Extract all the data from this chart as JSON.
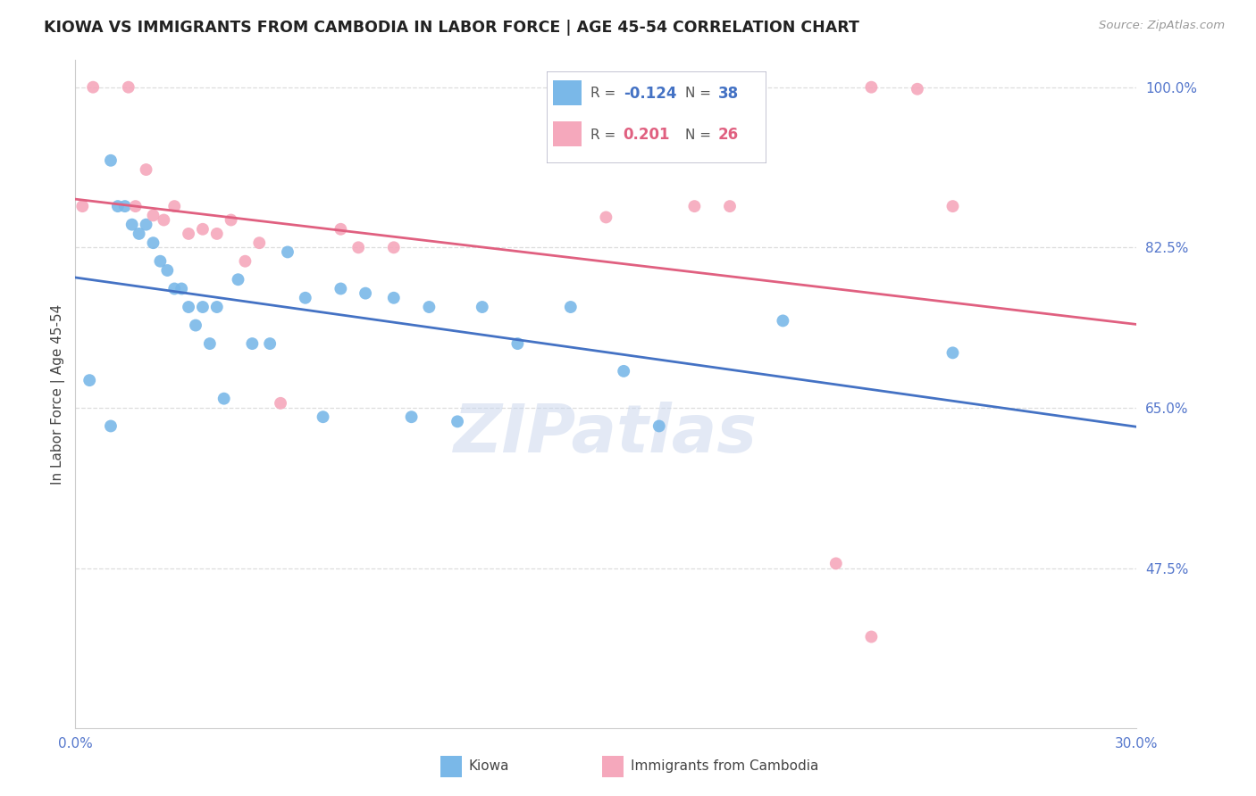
{
  "title": "KIOWA VS IMMIGRANTS FROM CAMBODIA IN LABOR FORCE | AGE 45-54 CORRELATION CHART",
  "source": "Source: ZipAtlas.com",
  "ylabel": "In Labor Force | Age 45-54",
  "xlim": [
    0.0,
    0.3
  ],
  "ylim": [
    0.3,
    1.03
  ],
  "yticks": [
    0.475,
    0.65,
    0.825,
    1.0
  ],
  "ytick_labels": [
    "47.5%",
    "65.0%",
    "82.5%",
    "100.0%"
  ],
  "xticks": [
    0.0,
    0.05,
    0.1,
    0.15,
    0.2,
    0.25,
    0.3
  ],
  "xtick_labels": [
    "0.0%",
    "",
    "",
    "",
    "",
    "",
    "30.0%"
  ],
  "blue_color": "#7ab8e8",
  "pink_color": "#f5a8bc",
  "blue_line_color": "#4472c4",
  "pink_line_color": "#e06080",
  "watermark_text": "ZIPatlas",
  "legend1": "Kiowa",
  "legend2": "Immigrants from Cambodia",
  "blue_x": [
    0.004,
    0.01,
    0.012,
    0.014,
    0.016,
    0.018,
    0.02,
    0.022,
    0.024,
    0.026,
    0.028,
    0.03,
    0.032,
    0.034,
    0.036,
    0.038,
    0.04,
    0.042,
    0.046,
    0.05,
    0.055,
    0.06,
    0.065,
    0.07,
    0.075,
    0.082,
    0.09,
    0.095,
    0.1,
    0.108,
    0.115,
    0.125,
    0.14,
    0.155,
    0.165,
    0.2,
    0.248,
    0.01
  ],
  "blue_y": [
    0.68,
    0.92,
    0.87,
    0.87,
    0.85,
    0.84,
    0.85,
    0.83,
    0.81,
    0.8,
    0.78,
    0.78,
    0.76,
    0.74,
    0.76,
    0.72,
    0.76,
    0.66,
    0.79,
    0.72,
    0.72,
    0.82,
    0.77,
    0.64,
    0.78,
    0.775,
    0.77,
    0.64,
    0.76,
    0.635,
    0.76,
    0.72,
    0.76,
    0.69,
    0.63,
    0.745,
    0.71,
    0.63
  ],
  "pink_x": [
    0.002,
    0.005,
    0.015,
    0.017,
    0.02,
    0.022,
    0.025,
    0.028,
    0.032,
    0.036,
    0.04,
    0.044,
    0.048,
    0.052,
    0.058,
    0.075,
    0.08,
    0.09,
    0.15,
    0.175,
    0.185,
    0.225,
    0.238,
    0.248,
    0.215,
    0.225
  ],
  "pink_y": [
    0.87,
    1.0,
    1.0,
    0.87,
    0.91,
    0.86,
    0.855,
    0.87,
    0.84,
    0.845,
    0.84,
    0.855,
    0.81,
    0.83,
    0.655,
    0.845,
    0.825,
    0.825,
    0.858,
    0.87,
    0.87,
    1.0,
    0.998,
    0.87,
    0.48,
    0.4
  ],
  "axis_label_color": "#5577cc",
  "grid_color": "#dddddd",
  "spine_color": "#cccccc"
}
